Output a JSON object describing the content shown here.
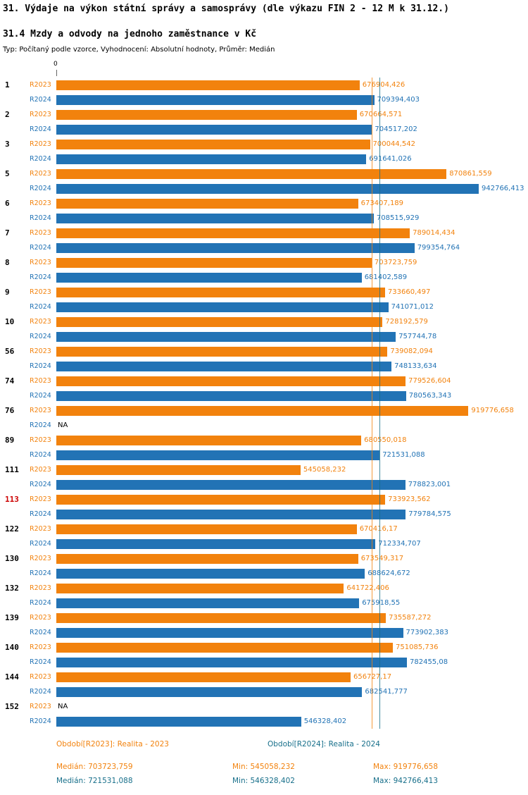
{
  "header": {
    "title": "31. Výdaje na výkon státní správy a samosprávy (dle výkazu FIN 2 - 12 M k 31.12.)",
    "subtitle": "31.4 Mzdy a odvody na jednoho zaměstnance v Kč",
    "meta": "Typ: Počítaný podle vzorce, Vyhodnocení: Absolutní hodnoty, Průměr: Medián"
  },
  "chart_data": {
    "type": "bar",
    "orientation": "horizontal",
    "axis_origin_label": "0",
    "xmax": 942766.413,
    "grid": false,
    "series_labels": [
      "R2023",
      "R2024"
    ],
    "highlighted_categories": [
      "113"
    ],
    "medians": {
      "r2023": 703723.759,
      "r2024": 721531.088
    },
    "colors": {
      "r2023": "#f2820d",
      "r2024": "#2273b5",
      "highlight": "#cc0000",
      "footer_2024": "#176f8a"
    },
    "categories": [
      "1",
      "2",
      "3",
      "5",
      "6",
      "7",
      "8",
      "9",
      "10",
      "56",
      "74",
      "76",
      "89",
      "111",
      "113",
      "122",
      "130",
      "132",
      "139",
      "140",
      "144",
      "152"
    ],
    "rows": [
      {
        "category": "1",
        "r2023": {
          "value": 676904.426,
          "label": "676904,426"
        },
        "r2024": {
          "value": 709394.403,
          "label": "709394,403"
        }
      },
      {
        "category": "2",
        "r2023": {
          "value": 670664.571,
          "label": "670664,571"
        },
        "r2024": {
          "value": 704517.202,
          "label": "704517,202"
        }
      },
      {
        "category": "3",
        "r2023": {
          "value": 700044.542,
          "label": "700044,542"
        },
        "r2024": {
          "value": 691641.026,
          "label": "691641,026"
        }
      },
      {
        "category": "5",
        "r2023": {
          "value": 870861.559,
          "label": "870861,559"
        },
        "r2024": {
          "value": 942766.413,
          "label": "942766,413"
        }
      },
      {
        "category": "6",
        "r2023": {
          "value": 673407.189,
          "label": "673407,189"
        },
        "r2024": {
          "value": 708515.929,
          "label": "708515,929"
        }
      },
      {
        "category": "7",
        "r2023": {
          "value": 789014.434,
          "label": "789014,434"
        },
        "r2024": {
          "value": 799354.764,
          "label": "799354,764"
        }
      },
      {
        "category": "8",
        "r2023": {
          "value": 703723.759,
          "label": "703723,759"
        },
        "r2024": {
          "value": 681402.589,
          "label": "681402,589"
        }
      },
      {
        "category": "9",
        "r2023": {
          "value": 733660.497,
          "label": "733660,497"
        },
        "r2024": {
          "value": 741071.012,
          "label": "741071,012"
        }
      },
      {
        "category": "10",
        "r2023": {
          "value": 728192.579,
          "label": "728192,579"
        },
        "r2024": {
          "value": 757744.78,
          "label": "757744,78"
        }
      },
      {
        "category": "56",
        "r2023": {
          "value": 739082.094,
          "label": "739082,094"
        },
        "r2024": {
          "value": 748133.634,
          "label": "748133,634"
        }
      },
      {
        "category": "74",
        "r2023": {
          "value": 779526.604,
          "label": "779526,604"
        },
        "r2024": {
          "value": 780563.343,
          "label": "780563,343"
        }
      },
      {
        "category": "76",
        "r2023": {
          "value": 919776.658,
          "label": "919776,658"
        },
        "r2024": {
          "value": null,
          "label": "NA"
        }
      },
      {
        "category": "89",
        "r2023": {
          "value": 680550.018,
          "label": "680550,018"
        },
        "r2024": {
          "value": 721531.088,
          "label": "721531,088"
        }
      },
      {
        "category": "111",
        "r2023": {
          "value": 545058.232,
          "label": "545058,232"
        },
        "r2024": {
          "value": 778823.001,
          "label": "778823,001"
        }
      },
      {
        "category": "113",
        "r2023": {
          "value": 733923.562,
          "label": "733923,562"
        },
        "r2024": {
          "value": 779784.575,
          "label": "779784,575"
        }
      },
      {
        "category": "122",
        "r2023": {
          "value": 670416.17,
          "label": "670416,17"
        },
        "r2024": {
          "value": 712334.707,
          "label": "712334,707"
        }
      },
      {
        "category": "130",
        "r2023": {
          "value": 673549.317,
          "label": "673549,317"
        },
        "r2024": {
          "value": 688624.672,
          "label": "688624,672"
        }
      },
      {
        "category": "132",
        "r2023": {
          "value": 641722.406,
          "label": "641722,406"
        },
        "r2024": {
          "value": 675918.55,
          "label": "675918,55"
        }
      },
      {
        "category": "139",
        "r2023": {
          "value": 735587.272,
          "label": "735587,272"
        },
        "r2024": {
          "value": 773902.383,
          "label": "773902,383"
        }
      },
      {
        "category": "140",
        "r2023": {
          "value": 751085.736,
          "label": "751085,736"
        },
        "r2024": {
          "value": 782455.08,
          "label": "782455,08"
        }
      },
      {
        "category": "144",
        "r2023": {
          "value": 656727.17,
          "label": "656727,17"
        },
        "r2024": {
          "value": 682541.777,
          "label": "682541,777"
        }
      },
      {
        "category": "152",
        "r2023": {
          "value": null,
          "label": "NA"
        },
        "r2024": {
          "value": 546328.402,
          "label": "546328,402"
        }
      }
    ]
  },
  "legend": {
    "period_2023": "Období[R2023]: Realita - 2023",
    "period_2024": "Období[R2024]: Realita - 2024"
  },
  "stats": {
    "r2023": {
      "median": "Medián: 703723,759",
      "min": "Min: 545058,232",
      "max": "Max: 919776,658"
    },
    "r2024": {
      "median": "Medián: 721531,088",
      "min": "Min: 546328,402",
      "max": "Max: 942766,413"
    }
  }
}
